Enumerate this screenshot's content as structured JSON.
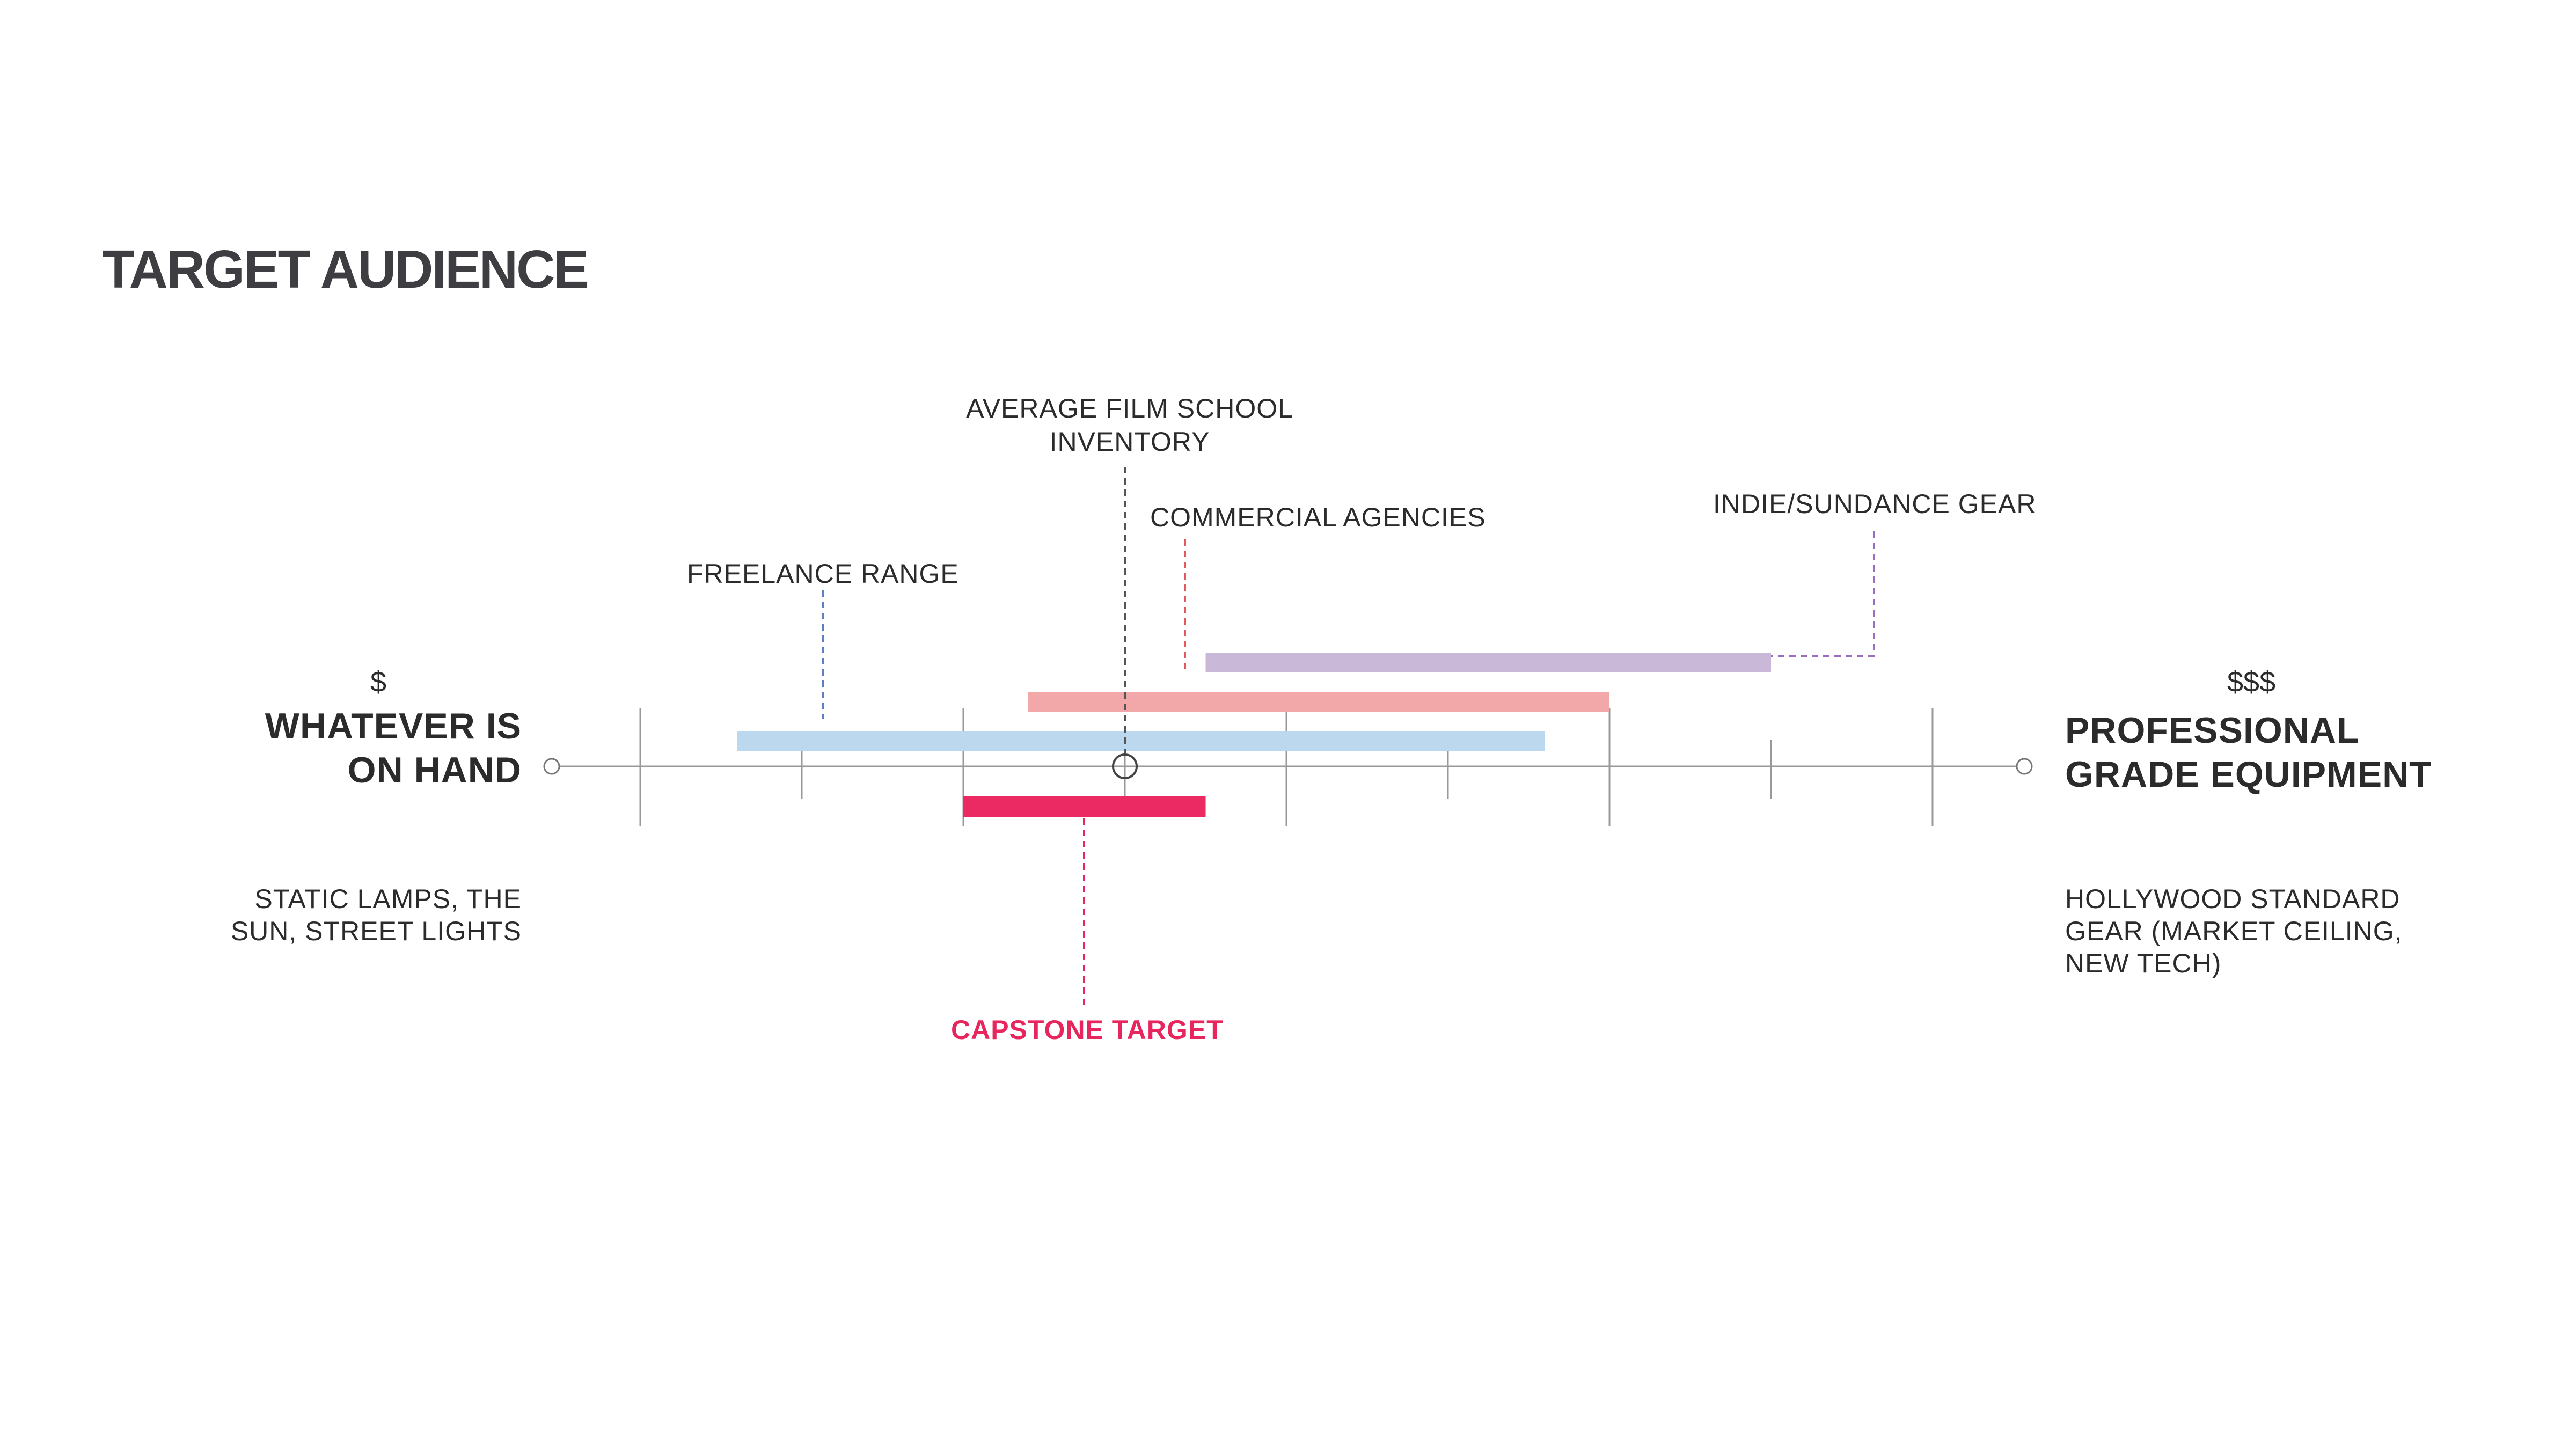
{
  "title": "TARGET AUDIENCE",
  "scale": {
    "low": {
      "cost": "$",
      "name_line1": "WHATEVER IS",
      "name_line2": "ON HAND",
      "desc_line1": "STATIC LAMPS, THE",
      "desc_line2": "SUN, STREET LIGHTS"
    },
    "high": {
      "cost": "$$$",
      "name_line1": "PROFESSIONAL",
      "name_line2": "GRADE EQUIPMENT",
      "desc_line1": "HOLLYWOOD STANDARD",
      "desc_line2": "GEAR (MARKET CEILING,",
      "desc_line3": "NEW TECH)"
    }
  },
  "markers": {
    "film_school": {
      "line1": "AVERAGE FILM SCHOOL",
      "line2": "INVENTORY"
    },
    "freelance": "FREELANCE RANGE",
    "commercial": "COMMERCIAL AGENCIES",
    "indie": "INDIE/SUNDANCE GEAR",
    "capstone": "CAPSTONE TARGET"
  },
  "ranges": [
    {
      "name": "INDIE/SUNDANCE GEAR",
      "start": 3.5,
      "end": 7.0,
      "color": "#c9b8d8"
    },
    {
      "name": "COMMERCIAL AGENCIES",
      "start": 2.4,
      "end": 6.0,
      "color": "#f2a7a9"
    },
    {
      "name": "FREELANCE RANGE",
      "start": 0.6,
      "end": 5.6,
      "color": "#bcd8ef"
    },
    {
      "name": "CAPSTONE TARGET",
      "start": 2.0,
      "end": 3.5,
      "color": "#eb2962"
    }
  ],
  "film_school_point": 3.0,
  "colors": {
    "axis": "#999999",
    "text": "#2b2b2b",
    "capstone": "#e8265e",
    "freelance_line": "#5b7fc0",
    "commercial_line": "#e4585a",
    "indie_line": "#9a6cc2",
    "film_line": "#555555"
  }
}
